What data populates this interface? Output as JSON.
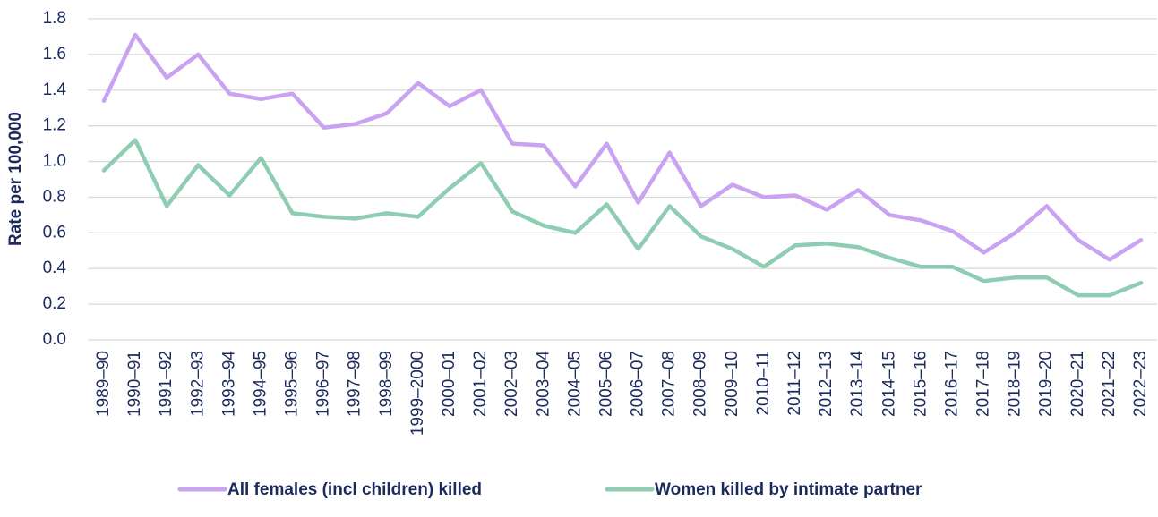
{
  "chart_data": {
    "type": "line",
    "y_label": "Rate per 100,000",
    "categories": [
      "1989–90",
      "1990–91",
      "1991–92",
      "1992–93",
      "1993–94",
      "1994–95",
      "1995–96",
      "1996–97",
      "1997–98",
      "1998–99",
      "1999–2000",
      "2000–01",
      "2001–02",
      "2002–03",
      "2003–04",
      "2004–05",
      "2005–06",
      "2006–07",
      "2007–08",
      "2008–09",
      "2009–10",
      "2010–11",
      "2011–12",
      "2012–13",
      "2013–14",
      "2014–15",
      "2015–16",
      "2016–17",
      "2017–18",
      "2018–19",
      "2019–20",
      "2020–21",
      "2021–22",
      "2022–23"
    ],
    "series": [
      {
        "name": "All females (incl children) killed",
        "color": "#c9a2f2",
        "values": [
          1.34,
          1.71,
          1.47,
          1.6,
          1.38,
          1.35,
          1.38,
          1.19,
          1.21,
          1.27,
          1.44,
          1.31,
          1.4,
          1.1,
          1.09,
          0.86,
          1.1,
          0.77,
          1.05,
          0.75,
          0.87,
          0.8,
          0.81,
          0.73,
          0.84,
          0.7,
          0.67,
          0.61,
          0.49,
          0.6,
          0.75,
          0.56,
          0.45,
          0.56
        ]
      },
      {
        "name": "Women killed by intimate partner",
        "color": "#8fcdb2",
        "values": [
          0.95,
          1.12,
          0.75,
          0.98,
          0.81,
          1.02,
          0.71,
          0.69,
          0.68,
          0.71,
          0.69,
          0.85,
          0.99,
          0.72,
          0.64,
          0.6,
          0.76,
          0.51,
          0.75,
          0.58,
          0.51,
          0.41,
          0.53,
          0.54,
          0.52,
          0.46,
          0.41,
          0.41,
          0.33,
          0.35,
          0.35,
          0.25,
          0.25,
          0.32
        ]
      }
    ],
    "ylim": [
      0,
      1.8
    ],
    "yticks": [
      {
        "value": 0,
        "label": "0.0"
      },
      0.2,
      0.4,
      0.6,
      0.8,
      {
        "value": 1,
        "label": "1.0"
      },
      1.2,
      1.4,
      1.6,
      1.8
    ],
    "grid": true
  }
}
